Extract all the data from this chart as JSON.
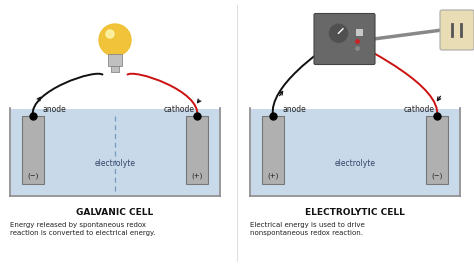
{
  "bg_color": "#ffffff",
  "water_color": "#c8daea",
  "water_border": "#8899bb",
  "electrode_color": "#b0b0b0",
  "title1": "GALVANIC CELL",
  "title2": "ELECTROLYTIC CELL",
  "desc1": "Energy released by spontaneous redox\nreaction is converted to electrical energy.",
  "desc2": "Electrical energy is used to drive\nnonspontaneous redox reaction.",
  "label_anode1": "anode",
  "label_cathode1": "cathode",
  "label_anode2": "anode",
  "label_cathode2": "cathode",
  "label_minus1": "(−)",
  "label_plus1": "(+)",
  "label_plus2": "(+)",
  "label_minus2": "(−)",
  "label_electrolyte": "electrolyte",
  "title_fontsize": 6.5,
  "desc_fontsize": 5.0,
  "label_fontsize": 5.5
}
